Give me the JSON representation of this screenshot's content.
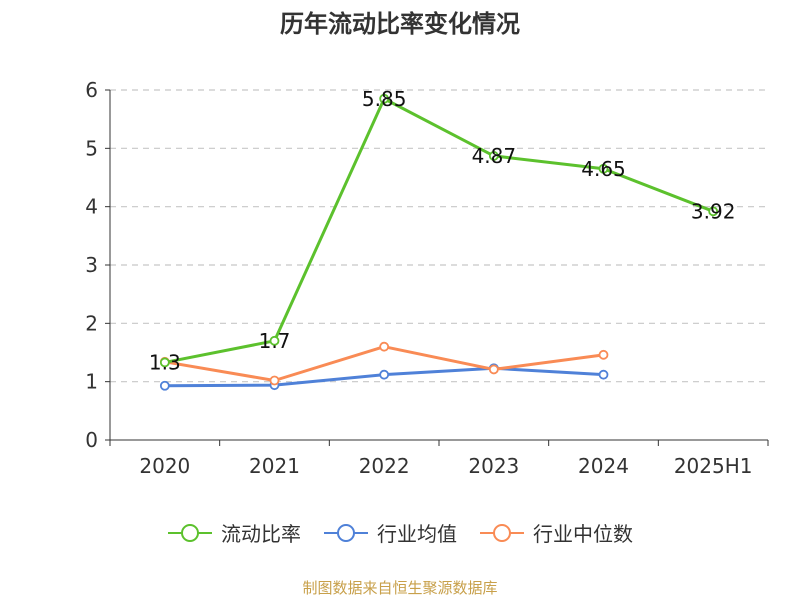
{
  "title": "历年流动比率变化情况",
  "source": "制图数据来自恒生聚源数据库",
  "colors": {
    "ratio": "#5cc12d",
    "industry_avg": "#4f81d8",
    "industry_median": "#f98b55",
    "grid": "#c8c8c8",
    "axis": "#333333"
  },
  "chart_data": {
    "type": "line",
    "title": "历年流动比率变化情况",
    "categories": [
      "2020",
      "2021",
      "2022",
      "2023",
      "2024",
      "2025H1"
    ],
    "ylim": [
      0,
      6
    ],
    "yticks": [
      "0",
      "1",
      "2",
      "3",
      "4",
      "5",
      "6"
    ],
    "grid": "horizontal-dashed",
    "legend_position": "bottom",
    "series": [
      {
        "name": "流动比率",
        "values": [
          1.33,
          1.7,
          5.85,
          4.87,
          4.65,
          3.92
        ],
        "labels": [
          "1.3",
          "1.7",
          "5.85",
          "4.87",
          "4.65",
          "3.92"
        ]
      },
      {
        "name": "行业均值",
        "values": [
          0.93,
          0.94,
          1.12,
          1.23,
          1.12,
          null
        ]
      },
      {
        "name": "行业中位数",
        "values": [
          1.34,
          1.02,
          1.6,
          1.21,
          1.46,
          null
        ]
      }
    ]
  },
  "legend": {
    "items": [
      {
        "label": "流动比率",
        "icon": "circle-line-icon"
      },
      {
        "label": "行业均值",
        "icon": "circle-line-icon"
      },
      {
        "label": "行业中位数",
        "icon": "circle-line-icon"
      }
    ]
  }
}
